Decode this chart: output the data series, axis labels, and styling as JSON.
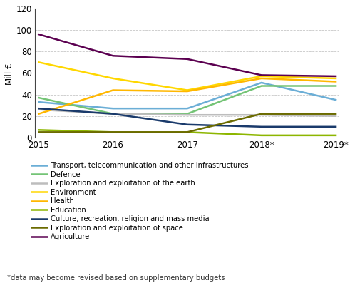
{
  "years": [
    2015,
    2016,
    2017,
    2018,
    2019
  ],
  "year_labels": [
    "2015",
    "2016",
    "2017",
    "2018*",
    "2019*"
  ],
  "series": [
    {
      "name": "Transport, telecommunication and other infrastructures",
      "color": "#6baed6",
      "values": [
        33,
        27,
        27,
        51,
        35
      ]
    },
    {
      "name": "Defence",
      "color": "#74c476",
      "values": [
        37,
        22,
        22,
        48,
        48
      ]
    },
    {
      "name": "Exploration and exploitation of the earth",
      "color": "#bdbdbd",
      "values": [
        26,
        22,
        21,
        21,
        20
      ]
    },
    {
      "name": "Environment",
      "color": "#ffd700",
      "values": [
        70,
        55,
        44,
        57,
        55
      ]
    },
    {
      "name": "Health",
      "color": "#ffb700",
      "values": [
        22,
        44,
        43,
        55,
        52
      ]
    },
    {
      "name": "Education",
      "color": "#8db600",
      "values": [
        7,
        5,
        5,
        2,
        2
      ]
    },
    {
      "name": "Culture, recreation, religion and mass media",
      "color": "#1a3a6b",
      "values": [
        27,
        22,
        12,
        10,
        10
      ]
    },
    {
      "name": "Exploration and exploitation of space",
      "color": "#6b6b00",
      "values": [
        5,
        5,
        5,
        22,
        22
      ]
    },
    {
      "name": "Agriculture",
      "color": "#5b0050",
      "values": [
        96,
        76,
        73,
        58,
        57
      ]
    }
  ],
  "ylabel": "Mill.€",
  "ylim": [
    0,
    120
  ],
  "yticks": [
    0,
    20,
    40,
    60,
    80,
    100,
    120
  ],
  "footnote": "*data may become revised based on supplementary budgets",
  "background_color": "#ffffff",
  "grid_color": "#c8c8c8"
}
